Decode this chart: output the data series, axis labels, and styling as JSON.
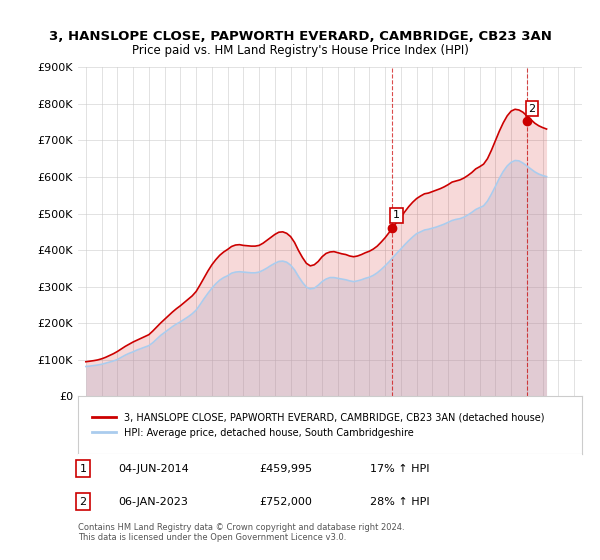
{
  "title": "3, HANSLOPE CLOSE, PAPWORTH EVERARD, CAMBRIDGE, CB23 3AN",
  "subtitle": "Price paid vs. HM Land Registry's House Price Index (HPI)",
  "ylim": [
    0,
    900000
  ],
  "yticks": [
    0,
    100000,
    200000,
    300000,
    400000,
    500000,
    600000,
    700000,
    800000,
    900000
  ],
  "ytick_labels": [
    "£0",
    "£100K",
    "£200K",
    "£300K",
    "£400K",
    "£500K",
    "£600K",
    "£700K",
    "£800K",
    "£900K"
  ],
  "background_color": "#ffffff",
  "grid_color": "#cccccc",
  "red_color": "#cc0000",
  "blue_color": "#aaccee",
  "marker1_date": 2014.42,
  "marker1_value": 459995,
  "marker1_label": "1",
  "marker2_date": 2023.02,
  "marker2_value": 752000,
  "marker2_label": "2",
  "legend_red": "3, HANSLOPE CLOSE, PAPWORTH EVERARD, CAMBRIDGE, CB23 3AN (detached house)",
  "legend_blue": "HPI: Average price, detached house, South Cambridgeshire",
  "annotation1_date": "04-JUN-2014",
  "annotation1_price": "£459,995",
  "annotation1_hpi": "17% ↑ HPI",
  "annotation2_date": "06-JAN-2023",
  "annotation2_price": "£752,000",
  "annotation2_hpi": "28% ↑ HPI",
  "footer": "Contains HM Land Registry data © Crown copyright and database right 2024.\nThis data is licensed under the Open Government Licence v3.0.",
  "hpi_years": [
    1995.0,
    1995.25,
    1995.5,
    1995.75,
    1996.0,
    1996.25,
    1996.5,
    1996.75,
    1997.0,
    1997.25,
    1997.5,
    1997.75,
    1998.0,
    1998.25,
    1998.5,
    1998.75,
    1999.0,
    1999.25,
    1999.5,
    1999.75,
    2000.0,
    2000.25,
    2000.5,
    2000.75,
    2001.0,
    2001.25,
    2001.5,
    2001.75,
    2002.0,
    2002.25,
    2002.5,
    2002.75,
    2003.0,
    2003.25,
    2003.5,
    2003.75,
    2004.0,
    2004.25,
    2004.5,
    2004.75,
    2005.0,
    2005.25,
    2005.5,
    2005.75,
    2006.0,
    2006.25,
    2006.5,
    2006.75,
    2007.0,
    2007.25,
    2007.5,
    2007.75,
    2008.0,
    2008.25,
    2008.5,
    2008.75,
    2009.0,
    2009.25,
    2009.5,
    2009.75,
    2010.0,
    2010.25,
    2010.5,
    2010.75,
    2011.0,
    2011.25,
    2011.5,
    2011.75,
    2012.0,
    2012.25,
    2012.5,
    2012.75,
    2013.0,
    2013.25,
    2013.5,
    2013.75,
    2014.0,
    2014.25,
    2014.5,
    2014.75,
    2015.0,
    2015.25,
    2015.5,
    2015.75,
    2016.0,
    2016.25,
    2016.5,
    2016.75,
    2017.0,
    2017.25,
    2017.5,
    2017.75,
    2018.0,
    2018.25,
    2018.5,
    2018.75,
    2019.0,
    2019.25,
    2019.5,
    2019.75,
    2020.0,
    2020.25,
    2020.5,
    2020.75,
    2021.0,
    2021.25,
    2021.5,
    2021.75,
    2022.0,
    2022.25,
    2022.5,
    2022.75,
    2023.0,
    2023.25,
    2023.5,
    2023.75,
    2024.0,
    2024.25
  ],
  "hpi_values": [
    82000,
    83000,
    84500,
    86000,
    88000,
    91000,
    94000,
    97000,
    101000,
    107000,
    113000,
    118000,
    122000,
    127000,
    131000,
    135000,
    139000,
    147000,
    157000,
    167000,
    175000,
    183000,
    191000,
    198000,
    204000,
    211000,
    218000,
    226000,
    236000,
    251000,
    267000,
    282000,
    296000,
    308000,
    318000,
    325000,
    330000,
    337000,
    340000,
    341000,
    340000,
    339000,
    338000,
    338000,
    340000,
    345000,
    351000,
    358000,
    364000,
    369000,
    370000,
    367000,
    359000,
    346000,
    328000,
    312000,
    299000,
    294000,
    296000,
    304000,
    314000,
    321000,
    325000,
    325000,
    323000,
    321000,
    319000,
    316000,
    314000,
    316000,
    319000,
    323000,
    326000,
    331000,
    338000,
    347000,
    357000,
    368000,
    380000,
    392000,
    403000,
    415000,
    426000,
    436000,
    445000,
    450000,
    455000,
    457000,
    460000,
    463000,
    467000,
    471000,
    476000,
    481000,
    484000,
    486000,
    490000,
    496000,
    503000,
    511000,
    516000,
    521000,
    534000,
    553000,
    574000,
    596000,
    615000,
    630000,
    640000,
    645000,
    644000,
    638000,
    630000,
    622000,
    614000,
    608000,
    604000,
    601000
  ],
  "red_years": [
    1995.0,
    1995.25,
    1995.5,
    1995.75,
    1996.0,
    1996.25,
    1996.5,
    1996.75,
    1997.0,
    1997.25,
    1997.5,
    1997.75,
    1998.0,
    1998.25,
    1998.5,
    1998.75,
    1999.0,
    1999.25,
    1999.5,
    1999.75,
    2000.0,
    2000.25,
    2000.5,
    2000.75,
    2001.0,
    2001.25,
    2001.5,
    2001.75,
    2002.0,
    2002.25,
    2002.5,
    2002.75,
    2003.0,
    2003.25,
    2003.5,
    2003.75,
    2004.0,
    2004.25,
    2004.5,
    2004.75,
    2005.0,
    2005.25,
    2005.5,
    2005.75,
    2006.0,
    2006.25,
    2006.5,
    2006.75,
    2007.0,
    2007.25,
    2007.5,
    2007.75,
    2008.0,
    2008.25,
    2008.5,
    2008.75,
    2009.0,
    2009.25,
    2009.5,
    2009.75,
    2010.0,
    2010.25,
    2010.5,
    2010.75,
    2011.0,
    2011.25,
    2011.5,
    2011.75,
    2012.0,
    2012.25,
    2012.5,
    2012.75,
    2013.0,
    2013.25,
    2013.5,
    2013.75,
    2014.0,
    2014.25,
    2014.5,
    2014.75,
    2015.0,
    2015.25,
    2015.5,
    2015.75,
    2016.0,
    2016.25,
    2016.5,
    2016.75,
    2017.0,
    2017.25,
    2017.5,
    2017.75,
    2018.0,
    2018.25,
    2018.5,
    2018.75,
    2019.0,
    2019.25,
    2019.5,
    2019.75,
    2020.0,
    2020.25,
    2020.5,
    2020.75,
    2021.0,
    2021.25,
    2021.5,
    2021.75,
    2022.0,
    2022.25,
    2022.5,
    2022.75,
    2023.0,
    2023.25,
    2023.5,
    2023.75,
    2024.0,
    2024.25
  ],
  "red_values": [
    95000,
    96500,
    98000,
    100000,
    103000,
    107000,
    112000,
    117000,
    123000,
    130000,
    137000,
    143000,
    149000,
    154000,
    159000,
    164000,
    169000,
    179000,
    190000,
    201000,
    211000,
    221000,
    231000,
    240000,
    248000,
    257000,
    266000,
    275000,
    287000,
    305000,
    324000,
    343000,
    360000,
    374000,
    386000,
    395000,
    402000,
    410000,
    414000,
    415000,
    413000,
    412000,
    411000,
    411000,
    413000,
    419000,
    427000,
    435000,
    443000,
    449000,
    450000,
    446000,
    437000,
    421000,
    399000,
    380000,
    364000,
    357000,
    360000,
    369000,
    382000,
    391000,
    395000,
    396000,
    393000,
    390000,
    388000,
    384000,
    382000,
    384000,
    388000,
    393000,
    397000,
    403000,
    411000,
    422000,
    434000,
    448000,
    463000,
    477000,
    490000,
    505000,
    519000,
    531000,
    541000,
    548000,
    554000,
    556000,
    560000,
    564000,
    568000,
    573000,
    579000,
    586000,
    589000,
    592000,
    597000,
    604000,
    612000,
    622000,
    628000,
    635000,
    650000,
    673000,
    699000,
    725000,
    748000,
    767000,
    780000,
    785000,
    783000,
    777000,
    767000,
    757000,
    747000,
    740000,
    735000,
    731000
  ]
}
